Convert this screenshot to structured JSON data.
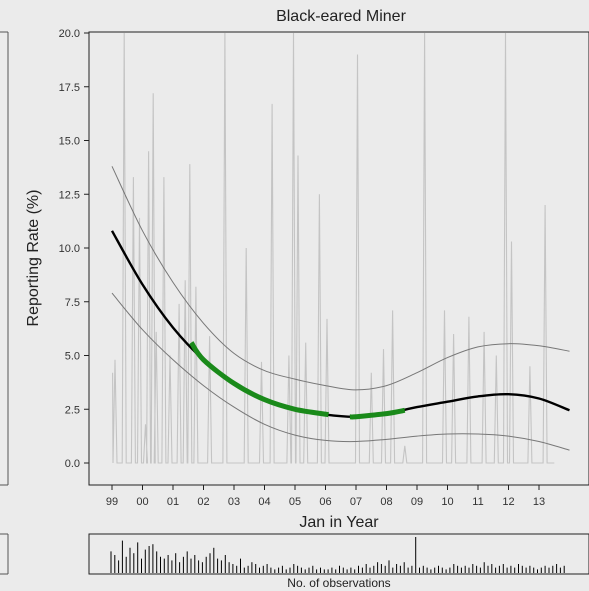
{
  "chart_data": {
    "type": "line",
    "title": "Black-eared Miner",
    "xlabel": "Jan in Year",
    "ylabel": "Reporting Rate (%)",
    "histogram_label": "No. of observations",
    "x_ticks": [
      "99",
      "00",
      "01",
      "02",
      "03",
      "04",
      "05",
      "06",
      "07",
      "08",
      "09",
      "10",
      "11",
      "12",
      "13"
    ],
    "x_tick_values": [
      1999,
      2000,
      2001,
      2002,
      2003,
      2004,
      2005,
      2006,
      2007,
      2008,
      2009,
      2010,
      2011,
      2012,
      2013
    ],
    "y_ticks": [
      "0.0",
      "2.5",
      "5.0",
      "7.5",
      "10.0",
      "12.5",
      "15.0",
      "17.5",
      "20.0"
    ],
    "y_tick_values": [
      0,
      2.5,
      5,
      7.5,
      10,
      12.5,
      15,
      17.5,
      20
    ],
    "ylim": [
      0,
      20
    ],
    "xlim": [
      1998.6,
      2014.8
    ],
    "colors": {
      "trend": "#000000",
      "significant": "#1a8a1a",
      "ci": "#777777",
      "raw": "#c4c4c4",
      "hist": "#000000",
      "background": "#ebebeb",
      "frame": "#222222"
    },
    "series": [
      {
        "role": "trend",
        "x": [
          1999,
          2000,
          2001,
          2002,
          2003,
          2004,
          2005,
          2006,
          2007,
          2008,
          2009,
          2010,
          2011,
          2012,
          2013,
          2014
        ],
        "values": [
          10.8,
          8.3,
          6.3,
          4.8,
          3.7,
          2.95,
          2.5,
          2.25,
          2.15,
          2.3,
          2.6,
          2.85,
          3.1,
          3.2,
          3.0,
          2.45
        ]
      },
      {
        "role": "upper_ci",
        "x": [
          1999,
          2000,
          2001,
          2002,
          2003,
          2004,
          2005,
          2006,
          2007,
          2008,
          2009,
          2010,
          2011,
          2012,
          2013,
          2014
        ],
        "values": [
          13.8,
          10.8,
          8.4,
          6.5,
          5.1,
          4.3,
          3.9,
          3.6,
          3.4,
          3.6,
          4.2,
          4.9,
          5.4,
          5.55,
          5.45,
          5.2
        ]
      },
      {
        "role": "lower_ci",
        "x": [
          1999,
          2000,
          2001,
          2002,
          2003,
          2004,
          2005,
          2006,
          2007,
          2008,
          2009,
          2010,
          2011,
          2012,
          2013,
          2014
        ],
        "values": [
          7.9,
          6.2,
          4.8,
          3.6,
          2.6,
          1.8,
          1.3,
          1.05,
          1.0,
          1.1,
          1.25,
          1.35,
          1.35,
          1.25,
          1.0,
          0.6
        ]
      },
      {
        "role": "significant_decline",
        "x": [
          2001.6,
          2002,
          2003,
          2004,
          2005,
          2006.1
        ],
        "values": [
          5.6,
          4.8,
          3.7,
          2.95,
          2.5,
          2.25
        ]
      },
      {
        "role": "significant_decline",
        "x": [
          2006.8,
          2007,
          2008,
          2008.6
        ],
        "values": [
          2.15,
          2.15,
          2.3,
          2.45
        ]
      }
    ],
    "raw_spikes": [
      {
        "x": 1999.1,
        "y": 4.8
      },
      {
        "x": 1999.4,
        "y": 20.0
      },
      {
        "x": 1999.7,
        "y": 13.3
      },
      {
        "x": 1999.9,
        "y": 11.4
      },
      {
        "x": 2000.1,
        "y": 1.8
      },
      {
        "x": 2000.2,
        "y": 14.5
      },
      {
        "x": 2000.35,
        "y": 17.2
      },
      {
        "x": 2000.45,
        "y": 6.1
      },
      {
        "x": 2000.7,
        "y": 13.3
      },
      {
        "x": 2000.9,
        "y": 5.0
      },
      {
        "x": 2001.2,
        "y": 7.4
      },
      {
        "x": 2001.4,
        "y": 8.5
      },
      {
        "x": 2001.55,
        "y": 13.9
      },
      {
        "x": 2001.75,
        "y": 8.2
      },
      {
        "x": 2002.2,
        "y": 5.9
      },
      {
        "x": 2002.7,
        "y": 20.0
      },
      {
        "x": 2003.4,
        "y": 10.0
      },
      {
        "x": 2003.9,
        "y": 4.7
      },
      {
        "x": 2004.25,
        "y": 16.7
      },
      {
        "x": 2004.8,
        "y": 5.0
      },
      {
        "x": 2004.95,
        "y": 20.0
      },
      {
        "x": 2005.1,
        "y": 14.3
      },
      {
        "x": 2005.35,
        "y": 5.6
      },
      {
        "x": 2005.8,
        "y": 12.5
      },
      {
        "x": 2006.05,
        "y": 6.7
      },
      {
        "x": 2007.05,
        "y": 19.0
      },
      {
        "x": 2007.5,
        "y": 4.2
      },
      {
        "x": 2007.9,
        "y": 5.3
      },
      {
        "x": 2008.2,
        "y": 7.1
      },
      {
        "x": 2008.6,
        "y": 0.8
      },
      {
        "x": 2009.25,
        "y": 20.0
      },
      {
        "x": 2009.9,
        "y": 7.1
      },
      {
        "x": 2010.2,
        "y": 6.0
      },
      {
        "x": 2010.7,
        "y": 6.8
      },
      {
        "x": 2011.2,
        "y": 6.1
      },
      {
        "x": 2011.6,
        "y": 5.0
      },
      {
        "x": 2011.9,
        "y": 20.0
      },
      {
        "x": 2012.1,
        "y": 10.3
      },
      {
        "x": 2012.7,
        "y": 4.5
      },
      {
        "x": 2013.2,
        "y": 12.0
      }
    ],
    "observations_hist": [
      12,
      10,
      7,
      18,
      9,
      14,
      11,
      17,
      8,
      13,
      15,
      16,
      12,
      9,
      8,
      10,
      7,
      11,
      6,
      9,
      12,
      8,
      10,
      7,
      6,
      9,
      11,
      14,
      8,
      7,
      10,
      6,
      5,
      4,
      8,
      3,
      4,
      6,
      5,
      3,
      4,
      5,
      3,
      2,
      3,
      4,
      2,
      3,
      5,
      4,
      3,
      2,
      3,
      4,
      2,
      3,
      2,
      2,
      3,
      2,
      4,
      3,
      2,
      3,
      2,
      4,
      3,
      5,
      3,
      4,
      6,
      5,
      4,
      7,
      3,
      5,
      4,
      6,
      3,
      4,
      20,
      3,
      4,
      3,
      2,
      3,
      4,
      3,
      2,
      3,
      5,
      4,
      3,
      4,
      3,
      5,
      4,
      3,
      6,
      4,
      5,
      3,
      4,
      5,
      3,
      4,
      3,
      5,
      4,
      3,
      4,
      3,
      2,
      3,
      4,
      3,
      4,
      5,
      3,
      4
    ],
    "grid": false,
    "legend": "none"
  }
}
